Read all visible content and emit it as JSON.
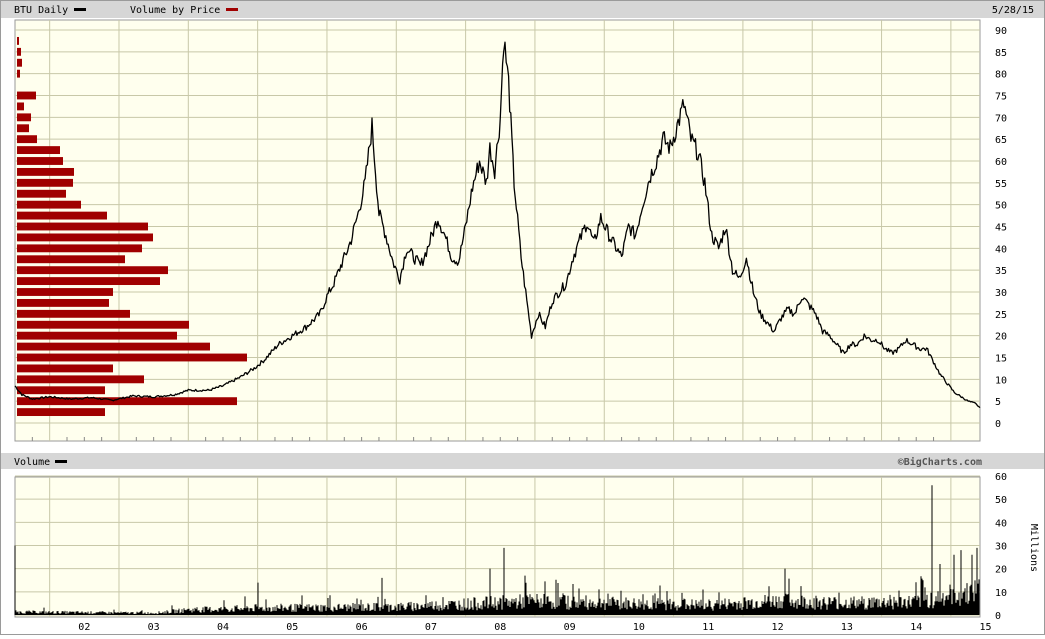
{
  "header": {
    "ticker_label": "BTU Daily",
    "vbp_label": "Volume by Price",
    "date": "5/28/15"
  },
  "volume_header": {
    "label": "Volume",
    "brand": "©BigCharts.com"
  },
  "colors": {
    "price_line": "#000000",
    "vbp_bar": "#a00000",
    "plot_bg": "#ffffee",
    "header_bg": "#d6d6d6",
    "grid": "#c8c8a8"
  },
  "chart_data": [
    {
      "type": "line",
      "title": "BTU Daily",
      "x_ticks": [
        "02",
        "03",
        "04",
        "05",
        "06",
        "07",
        "08",
        "09",
        "10",
        "11",
        "12",
        "13",
        "14",
        "15"
      ],
      "y_ticks": [
        0,
        5,
        10,
        15,
        20,
        25,
        30,
        35,
        40,
        45,
        50,
        55,
        60,
        65,
        70,
        75,
        80,
        85,
        90
      ],
      "ylim": [
        0,
        90
      ],
      "xlim": [
        2001.5,
        2015.42
      ],
      "grid": true,
      "series": [
        {
          "name": "BTU Daily",
          "x": [
            2001.5,
            2001.6,
            2001.75,
            2002.0,
            2002.3,
            2002.6,
            2002.9,
            2003.2,
            2003.5,
            2003.8,
            2004.0,
            2004.3,
            2004.5,
            2004.75,
            2004.95,
            2005.1,
            2005.3,
            2005.5,
            2005.7,
            2005.9,
            2006.0,
            2006.1,
            2006.2,
            2006.28,
            2006.35,
            2006.45,
            2006.55,
            2006.65,
            2006.75,
            2006.85,
            2006.95,
            2007.05,
            2007.15,
            2007.25,
            2007.35,
            2007.45,
            2007.6,
            2007.7,
            2007.8,
            2007.9,
            2008.0,
            2008.1,
            2008.2,
            2008.3,
            2008.35,
            2008.42,
            2008.5,
            2008.55,
            2008.62,
            2008.7,
            2008.8,
            2008.9,
            2008.95,
            2009.05,
            2009.15,
            2009.25,
            2009.35,
            2009.45,
            2009.55,
            2009.65,
            2009.75,
            2009.85,
            2009.95,
            2010.1,
            2010.25,
            2010.35,
            2010.45,
            2010.55,
            2010.65,
            2010.75,
            2010.85,
            2010.95,
            2011.05,
            2011.15,
            2011.25,
            2011.35,
            2011.45,
            2011.55,
            2011.65,
            2011.75,
            2011.85,
            2011.95,
            2012.05,
            2012.15,
            2012.25,
            2012.35,
            2012.45,
            2012.55,
            2012.65,
            2012.75,
            2012.85,
            2012.95,
            2013.05,
            2013.15,
            2013.25,
            2013.35,
            2013.45,
            2013.55,
            2013.65,
            2013.75,
            2013.85,
            2013.95,
            2014.05,
            2014.15,
            2014.25,
            2014.35,
            2014.45,
            2014.55,
            2014.65,
            2014.75,
            2014.85,
            2014.95,
            2015.05,
            2015.15,
            2015.25,
            2015.35,
            2015.42
          ],
          "y": [
            8.5,
            6.5,
            5.5,
            6.0,
            5.5,
            5.8,
            5.2,
            6.2,
            6.0,
            6.5,
            7.5,
            7.5,
            8.5,
            10.5,
            12.5,
            14.5,
            18,
            20,
            22,
            25,
            29,
            32,
            36,
            39,
            42,
            48,
            55,
            68,
            48,
            43,
            37,
            33,
            40,
            38,
            36,
            40,
            47,
            43,
            38,
            37,
            45,
            54,
            60,
            55,
            63,
            58,
            70,
            88,
            78,
            55,
            38,
            26,
            20,
            25,
            22,
            28,
            30,
            32,
            38,
            42,
            46,
            41,
            47,
            42,
            38,
            45,
            43,
            50,
            56,
            60,
            65,
            63,
            68,
            73,
            65,
            62,
            55,
            43,
            40,
            45,
            35,
            33,
            38,
            30,
            25,
            23,
            21,
            24,
            26,
            25,
            29,
            27,
            25,
            21,
            20,
            18,
            16,
            18,
            18,
            20,
            19,
            19,
            17,
            16,
            17,
            19,
            18,
            17,
            17,
            14,
            11,
            9,
            7,
            6,
            5,
            4.5,
            3.5
          ]
        }
      ]
    },
    {
      "type": "bar",
      "title": "Volume by Price",
      "orientation": "horizontal",
      "price_levels": [
        2.5,
        5,
        7.5,
        10,
        12.5,
        15,
        17.5,
        20,
        22.5,
        25,
        27.5,
        30,
        32.5,
        35,
        37.5,
        40,
        42.5,
        45,
        47.5,
        50,
        52.5,
        55,
        57.5,
        60,
        62.5,
        65,
        67.5,
        70,
        72.5,
        75,
        77.5,
        80,
        82.5,
        85,
        87.5
      ],
      "values": [
        88,
        220,
        88,
        127,
        96,
        230,
        193,
        160,
        172,
        113,
        92,
        96,
        143,
        151,
        108,
        125,
        136,
        131,
        90,
        64,
        49,
        56,
        57,
        46,
        43,
        20,
        12,
        14,
        7,
        19,
        0,
        3,
        5,
        4,
        2
      ]
    },
    {
      "type": "bar",
      "title": "Volume",
      "ylabel": "Millions",
      "y_ticks": [
        0,
        10,
        20,
        30,
        40,
        50,
        60
      ],
      "ylim": [
        0,
        60
      ],
      "x_ticks": [
        "02",
        "03",
        "04",
        "05",
        "06",
        "07",
        "08",
        "09",
        "10",
        "11",
        "12",
        "13",
        "14",
        "15"
      ],
      "spikes": [
        {
          "x": 2001.5,
          "y": 30
        },
        {
          "x": 2005.0,
          "y": 14
        },
        {
          "x": 2006.8,
          "y": 16
        },
        {
          "x": 2008.35,
          "y": 20
        },
        {
          "x": 2008.55,
          "y": 29
        },
        {
          "x": 2008.85,
          "y": 17
        },
        {
          "x": 2012.6,
          "y": 20
        },
        {
          "x": 2014.6,
          "y": 15
        },
        {
          "x": 2014.73,
          "y": 56
        },
        {
          "x": 2014.85,
          "y": 22
        },
        {
          "x": 2015.05,
          "y": 26
        },
        {
          "x": 2015.15,
          "y": 28
        },
        {
          "x": 2015.3,
          "y": 26
        },
        {
          "x": 2015.38,
          "y": 29
        }
      ],
      "baseline": [
        {
          "x": 2001.5,
          "y": 1.5
        },
        {
          "x": 2003.5,
          "y": 1.0
        },
        {
          "x": 2004.0,
          "y": 2.5
        },
        {
          "x": 2005.0,
          "y": 3.5
        },
        {
          "x": 2007.0,
          "y": 4.0
        },
        {
          "x": 2008.3,
          "y": 6.0
        },
        {
          "x": 2009.0,
          "y": 7.0
        },
        {
          "x": 2010.0,
          "y": 6.0
        },
        {
          "x": 2011.5,
          "y": 5.0
        },
        {
          "x": 2012.5,
          "y": 7.0
        },
        {
          "x": 2013.5,
          "y": 6.0
        },
        {
          "x": 2014.5,
          "y": 6.5
        },
        {
          "x": 2015.0,
          "y": 10.0
        },
        {
          "x": 2015.42,
          "y": 12.0
        }
      ]
    }
  ]
}
